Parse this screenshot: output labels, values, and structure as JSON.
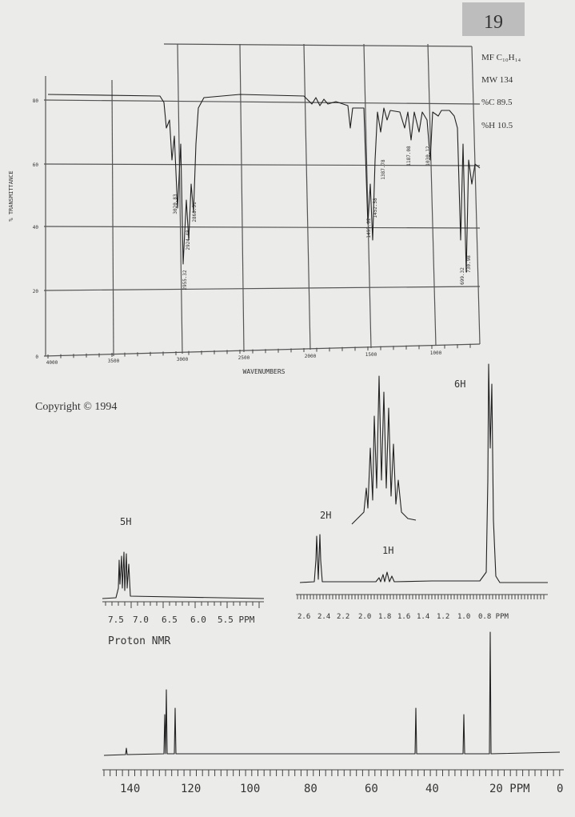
{
  "page_number": "19",
  "formula_info": [
    "MF C₁₀H₁₄",
    "MW 134",
    "%C 89.5",
    "%H 10.5"
  ],
  "ir": {
    "y_axis_label": "% TRANSMITTANCE",
    "yticks": [
      "80",
      "60",
      "40",
      "20",
      "0"
    ],
    "xticks": [
      "4000",
      "3500",
      "3000",
      "2500",
      "2000",
      "1500",
      "1000"
    ],
    "x_axis_label": "WAVENUMBERS",
    "peak_labels": [
      "3020.83",
      "2955.32",
      "2924.48",
      "2868.51",
      "1495.02",
      "1452.58",
      "1387.78",
      "1187.08",
      "1030.12",
      "730.98",
      "699.32"
    ]
  },
  "copyright": "Copyright © 1994",
  "proton_nmr": {
    "label": "Proton NMR",
    "integrations": [
      "5H",
      "2H",
      "1H",
      "6H"
    ],
    "left_axis": [
      "7.5",
      "7.0",
      "6.5",
      "6.0",
      "5.5 PPM"
    ],
    "right_axis": [
      "2.6",
      "2.4",
      "2.2",
      "2.0",
      "1.8",
      "1.6",
      "1.4",
      "1.2",
      "1.0",
      "0.8 PPM"
    ]
  },
  "carbon_nmr": {
    "axis": [
      "140",
      "120",
      "100",
      "80",
      "60",
      "40",
      "20 PPM",
      "0"
    ]
  }
}
